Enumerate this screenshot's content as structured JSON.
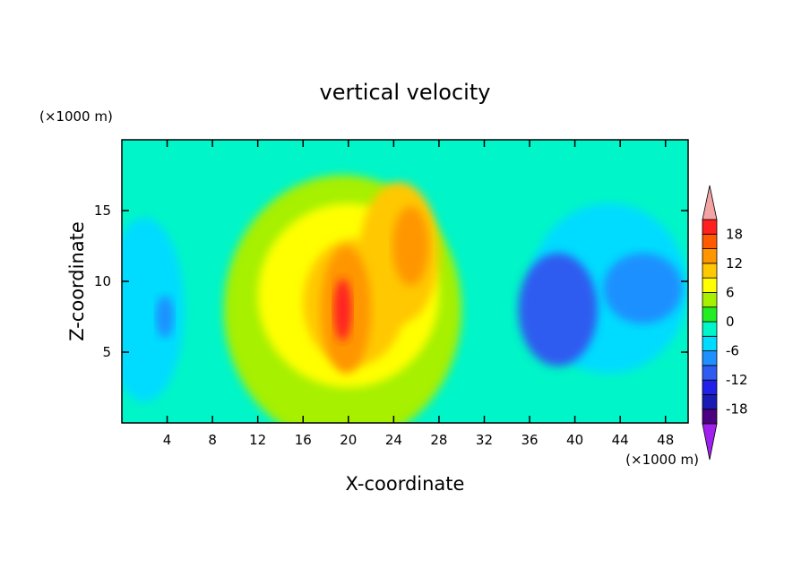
{
  "chart_data": {
    "type": "heatmap",
    "title": "vertical velocity",
    "xlabel": "X-coordinate",
    "ylabel": "Z-coordinate",
    "x_unit": "(×1000 m)",
    "y_unit": "(×1000 m)",
    "xlim": [
      0,
      50
    ],
    "ylim": [
      0,
      20
    ],
    "x_ticks": [
      "4",
      "8",
      "12",
      "16",
      "20",
      "24",
      "28",
      "32",
      "36",
      "40",
      "44",
      "48"
    ],
    "y_ticks": [
      "5",
      "10",
      "15"
    ],
    "colorbar": {
      "levels": [
        -21,
        -18,
        -15,
        -12,
        -9,
        -6,
        -3,
        0,
        3,
        6,
        9,
        12,
        15,
        18,
        21
      ],
      "labels": [
        "18",
        "12",
        "6",
        "0",
        "-6",
        "-12",
        "-18"
      ],
      "colors": [
        "#a020f0",
        "#4b0082",
        "#1a1ab4",
        "#2020e6",
        "#2f5cf0",
        "#1e90ff",
        "#00dcff",
        "#00f5c8",
        "#22ee22",
        "#a6f000",
        "#ffff00",
        "#ffc800",
        "#ff9600",
        "#ff5a00",
        "#ff2020",
        "#f4a4a4"
      ],
      "extend": "both"
    },
    "regions": [
      {
        "cx": 19.5,
        "cy": 8.0,
        "rx": 10.5,
        "ry": 9.5,
        "value": 4
      },
      {
        "cx": 20.0,
        "cy": 9.0,
        "rx": 8.0,
        "ry": 6.5,
        "value": 8
      },
      {
        "cx": 24.5,
        "cy": 12.0,
        "rx": 3.5,
        "ry": 5.0,
        "value": 9
      },
      {
        "cx": 20.5,
        "cy": 8.5,
        "rx": 4.5,
        "ry": 4.5,
        "value": 11
      },
      {
        "cx": 25.5,
        "cy": 12.5,
        "rx": 1.6,
        "ry": 2.8,
        "value": 13
      },
      {
        "cx": 19.8,
        "cy": 8.0,
        "rx": 2.2,
        "ry": 4.5,
        "value": 14
      },
      {
        "cx": 19.5,
        "cy": 8.0,
        "rx": 0.8,
        "ry": 2.2,
        "value": 19
      },
      {
        "cx": 43.0,
        "cy": 9.5,
        "rx": 7.0,
        "ry": 6.0,
        "value": -5
      },
      {
        "cx": 38.5,
        "cy": 8.0,
        "rx": 3.5,
        "ry": 4.0,
        "value": -10
      },
      {
        "cx": 46.0,
        "cy": 9.5,
        "rx": 3.5,
        "ry": 2.5,
        "value": -9
      },
      {
        "cx": 2.0,
        "cy": 8.0,
        "rx": 3.5,
        "ry": 6.5,
        "value": -5
      },
      {
        "cx": 3.8,
        "cy": 7.5,
        "rx": 0.8,
        "ry": 1.5,
        "value": -8
      }
    ]
  }
}
